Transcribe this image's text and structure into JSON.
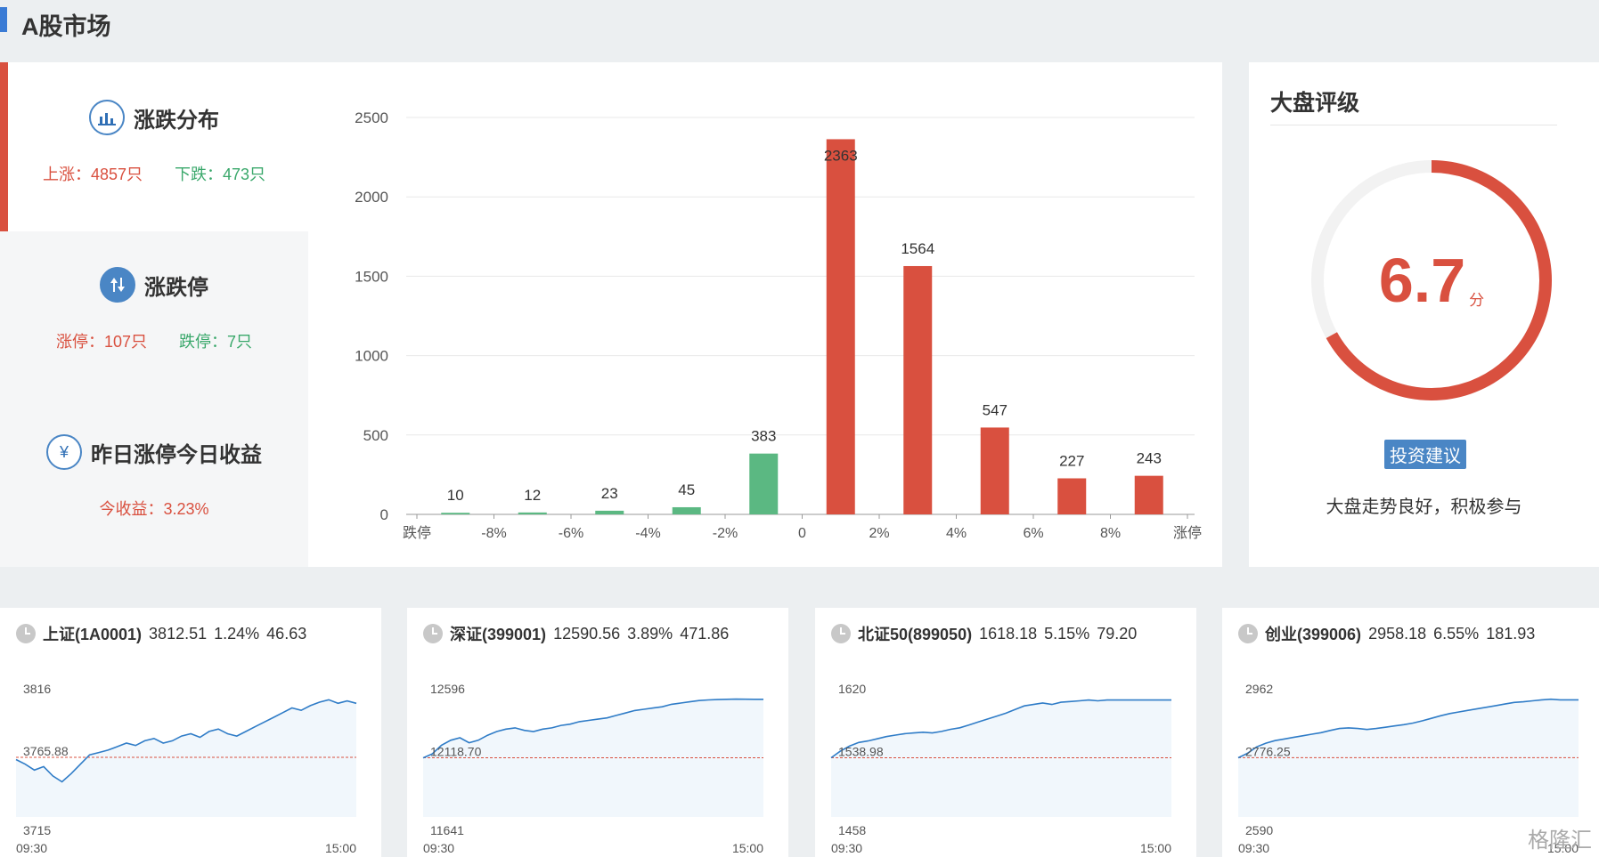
{
  "header": {
    "title": "A股市场"
  },
  "stats": {
    "distribution": {
      "title": "涨跌分布",
      "up": "上涨：4857只",
      "down": "下跌：473只"
    },
    "limit": {
      "title": "涨跌停",
      "up": "涨停：107只",
      "down": "跌停：7只"
    },
    "yesterday": {
      "title": "昨日涨停今日收益",
      "value": "今收益：3.23%"
    }
  },
  "chart_data": {
    "type": "bar",
    "categories": [
      "跌停",
      "-8%",
      "-6%",
      "-4%",
      "-2%",
      "0",
      "2%",
      "4%",
      "6%",
      "8%",
      "涨停"
    ],
    "bars": [
      {
        "label": "10",
        "value": 10,
        "color": "green"
      },
      {
        "label": "12",
        "value": 12,
        "color": "green"
      },
      {
        "label": "23",
        "value": 23,
        "color": "green"
      },
      {
        "label": "45",
        "value": 45,
        "color": "green"
      },
      {
        "label": "383",
        "value": 383,
        "color": "green"
      },
      {
        "label": "2363",
        "value": 2363,
        "color": "red"
      },
      {
        "label": "1564",
        "value": 1564,
        "color": "red"
      },
      {
        "label": "547",
        "value": 547,
        "color": "red"
      },
      {
        "label": "227",
        "value": 227,
        "color": "red"
      },
      {
        "label": "243",
        "value": 243,
        "color": "red"
      }
    ],
    "yticks": [
      "0",
      "500",
      "1000",
      "1500",
      "2000",
      "2500"
    ],
    "ylim": [
      0,
      2500
    ],
    "colors": {
      "red": "#d9503f",
      "green": "#5bb882",
      "grid": "#e8e8e8"
    }
  },
  "rating": {
    "title": "大盘评级",
    "score": "6.7",
    "unit": "分",
    "score_value": 6.7,
    "score_max": 10,
    "advice_label": "投资建议",
    "advice_text": "大盘走势良好，积极参与"
  },
  "indices": [
    {
      "name": "上证(1A0001)",
      "price": "3812.51",
      "pct": "1.24%",
      "chg": "46.63",
      "high": "3816",
      "base": "3765.88",
      "low": "3715",
      "start": "09:30",
      "end": "15:00",
      "series": [
        3764,
        3760,
        3755,
        3758,
        3750,
        3745,
        3752,
        3760,
        3768,
        3770,
        3772,
        3775,
        3778,
        3776,
        3780,
        3782,
        3778,
        3780,
        3784,
        3786,
        3783,
        3788,
        3790,
        3786,
        3784,
        3788,
        3792,
        3796,
        3800,
        3804,
        3808,
        3806,
        3810,
        3813,
        3815,
        3812,
        3814,
        3812
      ]
    },
    {
      "name": "深证(399001)",
      "price": "12590.56",
      "pct": "3.89%",
      "chg": "471.86",
      "high": "12596",
      "base": "12118.70",
      "low": "11641",
      "start": "09:30",
      "end": "15:00",
      "series": [
        12118,
        12150,
        12220,
        12260,
        12280,
        12240,
        12260,
        12300,
        12330,
        12350,
        12360,
        12340,
        12330,
        12350,
        12360,
        12380,
        12390,
        12410,
        12420,
        12430,
        12440,
        12460,
        12480,
        12500,
        12510,
        12520,
        12530,
        12550,
        12560,
        12570,
        12580,
        12585,
        12588,
        12590,
        12592,
        12591,
        12590,
        12590
      ]
    },
    {
      "name": "北证50(899050)",
      "price": "1618.18",
      "pct": "5.15%",
      "chg": "79.20",
      "high": "1620",
      "base": "1538.98",
      "low": "1458",
      "start": "09:30",
      "end": "15:00",
      "series": [
        1539,
        1548,
        1555,
        1560,
        1562,
        1565,
        1568,
        1570,
        1572,
        1573,
        1574,
        1573,
        1575,
        1578,
        1580,
        1584,
        1588,
        1592,
        1596,
        1600,
        1605,
        1610,
        1612,
        1614,
        1612,
        1615,
        1616,
        1617,
        1618,
        1617,
        1618,
        1618,
        1618,
        1618,
        1618,
        1618,
        1618,
        1618
      ]
    },
    {
      "name": "创业(399006)",
      "price": "2958.18",
      "pct": "6.55%",
      "chg": "181.93",
      "high": "2962",
      "base": "2776.25",
      "low": "2590",
      "start": "09:30",
      "end": "15:00",
      "series": [
        2776,
        2790,
        2810,
        2822,
        2830,
        2835,
        2840,
        2845,
        2850,
        2855,
        2862,
        2868,
        2870,
        2868,
        2865,
        2868,
        2872,
        2876,
        2880,
        2885,
        2892,
        2900,
        2908,
        2915,
        2920,
        2925,
        2930,
        2935,
        2940,
        2945,
        2950,
        2952,
        2955,
        2958,
        2960,
        2958,
        2958,
        2958
      ]
    }
  ],
  "watermark": "格隆汇"
}
